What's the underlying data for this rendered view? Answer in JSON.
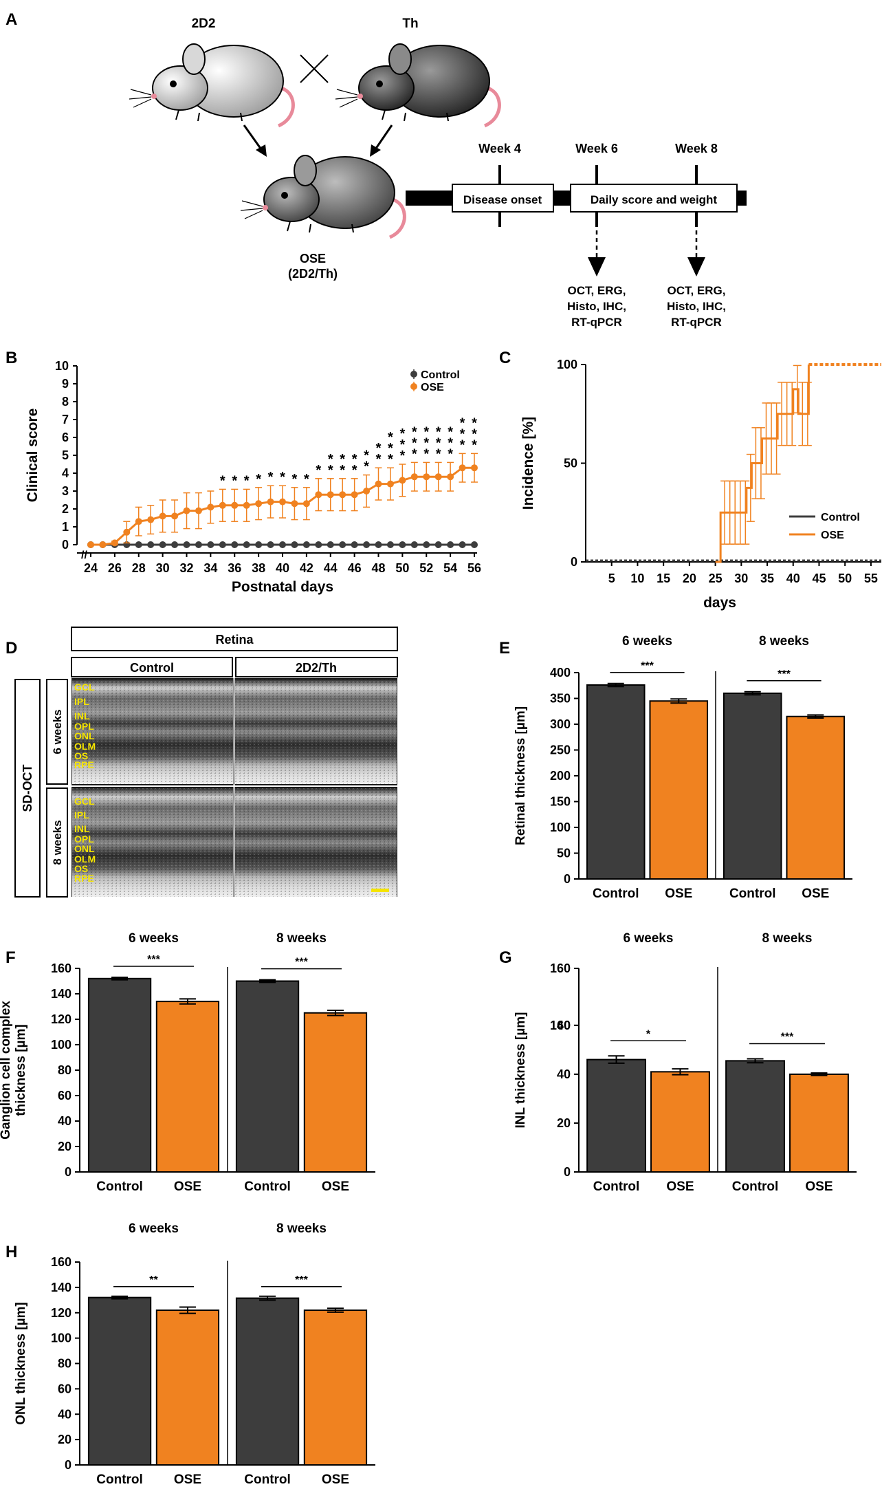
{
  "panels": {
    "A": {
      "letter": "A",
      "parent1": "2D2",
      "parent2": "Th",
      "offspring_line1": "OSE",
      "offspring_line2": "(2D2/Th)",
      "weeks": [
        "Week 4",
        "Week 6",
        "Week 8"
      ],
      "box1": "Disease onset",
      "box2": "Daily score and weight",
      "assay_lines": [
        "OCT, ERG,",
        "Histo, IHC,",
        "RT-qPCR"
      ]
    },
    "B": {
      "letter": "B",
      "legend": [
        "Control",
        "OSE"
      ],
      "sig_rows_per_day": [
        0,
        0,
        0,
        0,
        0,
        0,
        0,
        0,
        0,
        0,
        0,
        1,
        1,
        1,
        1,
        1,
        1,
        1,
        1,
        1,
        2,
        2,
        2,
        2,
        2,
        3,
        3,
        3,
        3,
        3,
        3,
        3,
        3
      ]
    },
    "C": {
      "letter": "C",
      "legend": [
        "Control",
        "OSE"
      ]
    },
    "D": {
      "letter": "D",
      "header": "Retina",
      "col_control": "Control",
      "col_mutant": "2D2/Th",
      "side_label": "SD-OCT",
      "row_6": "6 weeks",
      "row_8": "8 weeks",
      "layers": [
        "GCL",
        "IPL",
        "INL",
        "OPL",
        "ONL",
        "OLM",
        "OS",
        "RPE"
      ],
      "colors": {
        "layer_text": "#f5e400",
        "scale_bar": "#f5e400"
      }
    },
    "E": {
      "letter": "E"
    },
    "F": {
      "letter": "F"
    },
    "G": {
      "letter": "G"
    },
    "H": {
      "letter": "H"
    }
  },
  "colors": {
    "control": "#3d3d3d",
    "ose": "#f08220",
    "axis": "#000000"
  },
  "chart_data": [
    {
      "id": "B",
      "type": "line",
      "title": "",
      "xlabel": "Postnatal days",
      "ylabel": "Clinical score",
      "xlim": [
        24,
        56
      ],
      "ylim": [
        0,
        10
      ],
      "xticks": [
        24,
        26,
        28,
        30,
        32,
        34,
        36,
        38,
        40,
        42,
        44,
        46,
        48,
        50,
        52,
        54,
        56
      ],
      "yticks": [
        0,
        1,
        2,
        3,
        4,
        5,
        6,
        7,
        8,
        9,
        10
      ],
      "x": [
        24,
        25,
        26,
        27,
        28,
        29,
        30,
        31,
        32,
        33,
        34,
        35,
        36,
        37,
        38,
        39,
        40,
        41,
        42,
        43,
        44,
        45,
        46,
        47,
        48,
        49,
        50,
        51,
        52,
        53,
        54,
        55,
        56
      ],
      "series": [
        {
          "name": "Control",
          "values": [
            0,
            0,
            0,
            0,
            0,
            0,
            0,
            0,
            0,
            0,
            0,
            0,
            0,
            0,
            0,
            0,
            0,
            0,
            0,
            0,
            0,
            0,
            0,
            0,
            0,
            0,
            0,
            0,
            0,
            0,
            0,
            0,
            0
          ],
          "error": [
            0,
            0,
            0,
            0,
            0,
            0,
            0,
            0,
            0,
            0,
            0,
            0,
            0,
            0,
            0,
            0,
            0,
            0,
            0,
            0,
            0,
            0,
            0,
            0,
            0,
            0,
            0,
            0,
            0,
            0,
            0,
            0,
            0
          ]
        },
        {
          "name": "OSE",
          "values": [
            0,
            0,
            0.1,
            0.7,
            1.3,
            1.4,
            1.6,
            1.6,
            1.9,
            1.9,
            2.1,
            2.2,
            2.2,
            2.2,
            2.3,
            2.4,
            2.4,
            2.3,
            2.3,
            2.8,
            2.8,
            2.8,
            2.8,
            3.0,
            3.4,
            3.4,
            3.6,
            3.8,
            3.8,
            3.8,
            3.8,
            4.3,
            4.3
          ],
          "error": [
            0,
            0,
            0.1,
            0.6,
            0.8,
            0.8,
            0.9,
            0.9,
            1.0,
            1.0,
            0.9,
            0.9,
            0.9,
            0.9,
            0.9,
            0.9,
            0.9,
            0.9,
            0.9,
            0.9,
            0.9,
            0.9,
            0.9,
            0.9,
            0.9,
            0.9,
            0.9,
            0.8,
            0.8,
            0.8,
            0.8,
            0.8,
            0.8
          ]
        }
      ],
      "significance_marker": "*"
    },
    {
      "id": "C",
      "type": "line",
      "xlabel": "days",
      "ylabel": "Incidence [%]",
      "xlim": [
        0,
        57
      ],
      "ylim": [
        0,
        100
      ],
      "xticks": [
        5,
        10,
        15,
        20,
        25,
        30,
        35,
        40,
        45,
        50,
        55
      ],
      "yticks": [
        0,
        50,
        100
      ],
      "series": [
        {
          "name": "Control",
          "x": [
            0,
            57
          ],
          "values": [
            0,
            0
          ]
        },
        {
          "name": "OSE",
          "x": [
            25,
            26,
            27,
            28,
            29,
            30,
            31,
            32,
            33,
            34,
            35,
            36,
            37,
            38,
            39,
            40,
            41,
            42,
            43
          ],
          "values": [
            0,
            25,
            25,
            25,
            25,
            25,
            37.5,
            50,
            50,
            62.5,
            62.5,
            62.5,
            75,
            75,
            75,
            87.5,
            75,
            75,
            100
          ],
          "error": [
            0,
            16,
            16,
            16,
            16,
            16,
            17,
            18,
            18,
            18,
            18,
            18,
            16,
            16,
            16,
            12,
            16,
            16,
            0
          ]
        },
        {
          "name": "OSE-plateau",
          "x": [
            43,
            57
          ],
          "values": [
            100,
            100
          ]
        }
      ]
    },
    {
      "id": "E",
      "type": "bar",
      "ylabel": "Retinal thickness [µm]",
      "ylim": [
        0,
        400
      ],
      "yticks": [
        0,
        50,
        100,
        150,
        200,
        250,
        300,
        350,
        400
      ],
      "groups": [
        {
          "label": "6 weeks",
          "categories": [
            "Control",
            "OSE"
          ],
          "values": [
            376,
            345
          ],
          "errors": [
            3,
            4
          ],
          "sig": "***"
        },
        {
          "label": "8 weeks",
          "categories": [
            "Control",
            "OSE"
          ],
          "values": [
            360,
            315
          ],
          "errors": [
            3,
            3
          ],
          "sig": "***"
        }
      ]
    },
    {
      "id": "F",
      "type": "bar",
      "ylabel_lines": [
        "Ganglion cell complex",
        "thickness [µm]"
      ],
      "ylim": [
        0,
        160
      ],
      "yticks": [
        0,
        20,
        40,
        60,
        80,
        100,
        120,
        140,
        160
      ],
      "groups": [
        {
          "label": "6 weeks",
          "categories": [
            "Control",
            "OSE"
          ],
          "values": [
            152,
            134
          ],
          "errors": [
            1,
            2
          ],
          "sig": "***"
        },
        {
          "label": "8 weeks",
          "categories": [
            "Control",
            "OSE"
          ],
          "values": [
            150,
            125
          ],
          "errors": [
            1,
            2
          ],
          "sig": "***"
        }
      ]
    },
    {
      "id": "G",
      "type": "bar",
      "ylabel": "INL thickness [µm]",
      "ylim": [
        0,
        160
      ],
      "axis_break": [
        60,
        140
      ],
      "yticks": [
        0,
        20,
        40,
        60,
        140,
        160
      ],
      "groups": [
        {
          "label": "6 weeks",
          "categories": [
            "Control",
            "OSE"
          ],
          "values": [
            46,
            41
          ],
          "errors": [
            1.5,
            1.2
          ],
          "sig": "*"
        },
        {
          "label": "8 weeks",
          "categories": [
            "Control",
            "OSE"
          ],
          "values": [
            45.5,
            40
          ],
          "errors": [
            0.8,
            0.5
          ],
          "sig": "***"
        }
      ]
    },
    {
      "id": "H",
      "type": "bar",
      "ylabel": "ONL thickness [µm]",
      "ylim": [
        0,
        160
      ],
      "yticks": [
        0,
        20,
        40,
        60,
        80,
        100,
        120,
        140,
        160
      ],
      "groups": [
        {
          "label": "6 weeks",
          "categories": [
            "Control",
            "OSE"
          ],
          "values": [
            132,
            122
          ],
          "errors": [
            1,
            2.5
          ],
          "sig": "**"
        },
        {
          "label": "8 weeks",
          "categories": [
            "Control",
            "OSE"
          ],
          "values": [
            131.5,
            122
          ],
          "errors": [
            1.5,
            1.5
          ],
          "sig": "***"
        }
      ]
    }
  ]
}
